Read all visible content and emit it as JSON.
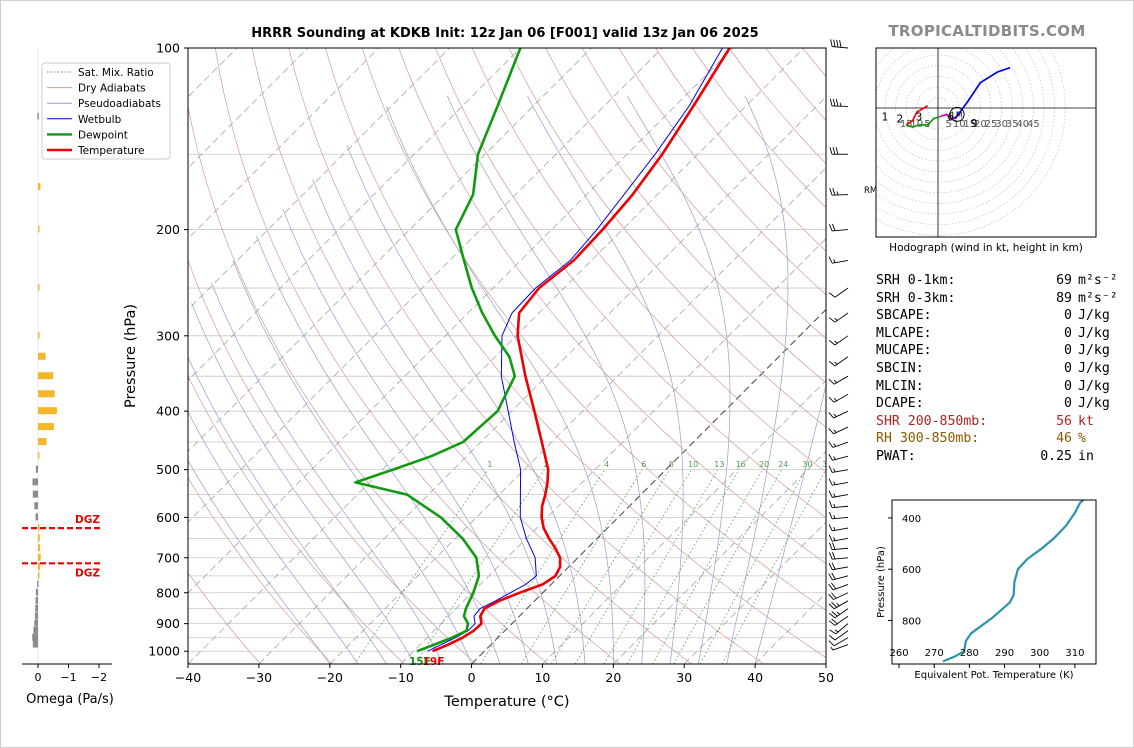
{
  "source": "TROPICALTIDBITS.COM",
  "title": "HRRR Sounding at KDKB Init: 12z Jan 06 [F001] valid 13z Jan 06 2025",
  "omega": {
    "xlabel": "Omega (Pa/s)",
    "ticks": [
      "0",
      "−1",
      "−2"
    ],
    "dgz_label": "DGZ",
    "dgz_top_hpa": 625,
    "dgz_bottom_hpa": 715,
    "bars": [
      {
        "p": 130,
        "v": 0.02
      },
      {
        "p": 170,
        "v": -0.08
      },
      {
        "p": 200,
        "v": -0.03
      },
      {
        "p": 250,
        "v": -0.04
      },
      {
        "p": 300,
        "v": -0.04
      },
      {
        "p": 325,
        "v": -0.25
      },
      {
        "p": 350,
        "v": -0.5
      },
      {
        "p": 375,
        "v": -0.55
      },
      {
        "p": 400,
        "v": -0.62
      },
      {
        "p": 425,
        "v": -0.52
      },
      {
        "p": 450,
        "v": -0.28
      },
      {
        "p": 475,
        "v": -0.04
      },
      {
        "p": 500,
        "v": 0.07
      },
      {
        "p": 525,
        "v": 0.18
      },
      {
        "p": 550,
        "v": 0.17
      },
      {
        "p": 575,
        "v": 0.12
      },
      {
        "p": 600,
        "v": 0.08
      },
      {
        "p": 625,
        "v": -0.04
      },
      {
        "p": 650,
        "v": -0.06
      },
      {
        "p": 675,
        "v": -0.07
      },
      {
        "p": 700,
        "v": -0.09
      },
      {
        "p": 725,
        "v": -0.07
      },
      {
        "p": 750,
        "v": -0.02
      },
      {
        "p": 775,
        "v": 0.03
      },
      {
        "p": 800,
        "v": 0.07
      },
      {
        "p": 825,
        "v": 0.08
      },
      {
        "p": 850,
        "v": 0.09
      },
      {
        "p": 875,
        "v": 0.1
      },
      {
        "p": 900,
        "v": 0.12
      },
      {
        "p": 925,
        "v": 0.15
      },
      {
        "p": 950,
        "v": 0.19
      },
      {
        "p": 975,
        "v": 0.17
      }
    ]
  },
  "chart_data": [
    {
      "type": "line",
      "title": "HRRR Sounding at KDKB Init: 12z Jan 06 [F001] valid 13z Jan 06 2025",
      "xlabel": "Temperature (°C)",
      "ylabel": "Pressure (hPa)",
      "xlim": [
        -40,
        50
      ],
      "ylim": [
        1050,
        100
      ],
      "y_scale": "log",
      "x_ticks": [
        "−40",
        "−30",
        "−20",
        "−10",
        "0",
        "10",
        "20",
        "30",
        "40",
        "50"
      ],
      "y_ticks": [
        {
          "p": 100,
          "label": "100"
        },
        {
          "p": 200,
          "label": "200"
        },
        {
          "p": 300,
          "label": "300"
        },
        {
          "p": 400,
          "label": "400"
        },
        {
          "p": 500,
          "label": "500"
        },
        {
          "p": 600,
          "label": "600"
        },
        {
          "p": 700,
          "label": "700"
        },
        {
          "p": 800,
          "label": "800"
        },
        {
          "p": 900,
          "label": "900"
        },
        {
          "p": 1000,
          "label": "1000"
        }
      ],
      "grid": true,
      "legend_position": "top-left",
      "legend": [
        {
          "label": "Sat. Mix. Ratio",
          "color": "#4c9f4c",
          "style": "dotted"
        },
        {
          "label": "Dry Adiabats",
          "color": "#d49a9a",
          "style": "solid"
        },
        {
          "label": "Pseudoadiabats",
          "color": "#9a9ad4",
          "style": "solid"
        },
        {
          "label": "Wetbulb",
          "color": "#0000ee",
          "style": "solid"
        },
        {
          "label": "Dewpoint",
          "color": "#109a10",
          "style": "solid"
        },
        {
          "label": "Temperature",
          "color": "#ee0000",
          "style": "solid"
        }
      ],
      "mixing_ratio_labels": [
        "1",
        "2",
        "4",
        "6",
        "8",
        "10",
        "13",
        "16",
        "20",
        "24",
        "30",
        "36"
      ],
      "mixing_ratio_values": [
        1,
        2,
        4,
        6,
        8,
        10,
        13,
        16,
        20,
        24,
        30,
        36
      ],
      "surface_labels": {
        "dewpoint": "15F",
        "temperature": "19F"
      },
      "series": [
        {
          "name": "Temperature",
          "color": "#ee0000",
          "points": [
            {
              "p": 1000,
              "t": -7.3
            },
            {
              "p": 975,
              "t": -6.0
            },
            {
              "p": 950,
              "t": -5.0
            },
            {
              "p": 925,
              "t": -4.4
            },
            {
              "p": 900,
              "t": -4.3
            },
            {
              "p": 875,
              "t": -5.5
            },
            {
              "p": 850,
              "t": -6.0
            },
            {
              "p": 825,
              "t": -5.0
            },
            {
              "p": 800,
              "t": -3.3
            },
            {
              "p": 775,
              "t": -1.2
            },
            {
              "p": 750,
              "t": -0.6
            },
            {
              "p": 725,
              "t": -1.2
            },
            {
              "p": 700,
              "t": -2.5
            },
            {
              "p": 675,
              "t": -4.5
            },
            {
              "p": 650,
              "t": -6.8
            },
            {
              "p": 625,
              "t": -9.0
            },
            {
              "p": 600,
              "t": -10.8
            },
            {
              "p": 575,
              "t": -12.3
            },
            {
              "p": 550,
              "t": -13.5
            },
            {
              "p": 525,
              "t": -14.9
            },
            {
              "p": 500,
              "t": -16.6
            },
            {
              "p": 450,
              "t": -21.4
            },
            {
              "p": 400,
              "t": -26.8
            },
            {
              "p": 350,
              "t": -33.0
            },
            {
              "p": 300,
              "t": -39.8
            },
            {
              "p": 275,
              "t": -42.8
            },
            {
              "p": 250,
              "t": -43.5
            },
            {
              "p": 225,
              "t": -42.5
            },
            {
              "p": 200,
              "t": -42.8
            },
            {
              "p": 175,
              "t": -43.5
            },
            {
              "p": 150,
              "t": -45.0
            },
            {
              "p": 125,
              "t": -47.4
            },
            {
              "p": 100,
              "t": -50.5
            }
          ]
        },
        {
          "name": "Wetbulb",
          "color": "#0000ee",
          "points": [
            {
              "p": 1000,
              "t": -8.0
            },
            {
              "p": 950,
              "t": -6.0
            },
            {
              "p": 925,
              "t": -5.2
            },
            {
              "p": 900,
              "t": -5.2
            },
            {
              "p": 875,
              "t": -6.4
            },
            {
              "p": 850,
              "t": -6.6
            },
            {
              "p": 825,
              "t": -5.5
            },
            {
              "p": 800,
              "t": -4.6
            },
            {
              "p": 775,
              "t": -3.6
            },
            {
              "p": 750,
              "t": -3.3
            },
            {
              "p": 700,
              "t": -6.0
            },
            {
              "p": 650,
              "t": -10.0
            },
            {
              "p": 600,
              "t": -13.8
            },
            {
              "p": 550,
              "t": -17.0
            },
            {
              "p": 500,
              "t": -20.5
            },
            {
              "p": 450,
              "t": -25.3
            },
            {
              "p": 400,
              "t": -30.5
            },
            {
              "p": 350,
              "t": -36.4
            },
            {
              "p": 300,
              "t": -42.0
            },
            {
              "p": 275,
              "t": -43.8
            },
            {
              "p": 250,
              "t": -44.0
            },
            {
              "p": 225,
              "t": -43.0
            },
            {
              "p": 200,
              "t": -43.6
            },
            {
              "p": 150,
              "t": -46.0
            },
            {
              "p": 125,
              "t": -48.0
            },
            {
              "p": 100,
              "t": -51.5
            }
          ]
        },
        {
          "name": "Dewpoint",
          "color": "#109a10",
          "points": [
            {
              "p": 1000,
              "t": -9.5
            },
            {
              "p": 975,
              "t": -8.0
            },
            {
              "p": 950,
              "t": -6.5
            },
            {
              "p": 925,
              "t": -5.4
            },
            {
              "p": 900,
              "t": -6.2
            },
            {
              "p": 875,
              "t": -7.8
            },
            {
              "p": 850,
              "t": -8.6
            },
            {
              "p": 800,
              "t": -9.8
            },
            {
              "p": 750,
              "t": -11.4
            },
            {
              "p": 700,
              "t": -14.3
            },
            {
              "p": 650,
              "t": -19.0
            },
            {
              "p": 600,
              "t": -25.0
            },
            {
              "p": 550,
              "t": -33.0
            },
            {
              "p": 525,
              "t": -42.0
            },
            {
              "p": 500,
              "t": -38.5
            },
            {
              "p": 475,
              "t": -35.0
            },
            {
              "p": 450,
              "t": -32.5
            },
            {
              "p": 400,
              "t": -32.0
            },
            {
              "p": 350,
              "t": -34.5
            },
            {
              "p": 325,
              "t": -38.0
            },
            {
              "p": 300,
              "t": -43.0
            },
            {
              "p": 275,
              "t": -48.0
            },
            {
              "p": 250,
              "t": -53.0
            },
            {
              "p": 225,
              "t": -58.0
            },
            {
              "p": 200,
              "t": -63.5
            },
            {
              "p": 175,
              "t": -66.0
            },
            {
              "p": 150,
              "t": -71.0
            },
            {
              "p": 125,
              "t": -75.0
            },
            {
              "p": 100,
              "t": -80.0
            }
          ]
        }
      ],
      "wind_barbs": [
        {
          "p": 975,
          "dir": 250,
          "spd": 5
        },
        {
          "p": 950,
          "dir": 240,
          "spd": 10
        },
        {
          "p": 925,
          "dir": 235,
          "spd": 10
        },
        {
          "p": 900,
          "dir": 230,
          "spd": 15
        },
        {
          "p": 875,
          "dir": 235,
          "spd": 20
        },
        {
          "p": 850,
          "dir": 235,
          "spd": 25
        },
        {
          "p": 825,
          "dir": 240,
          "spd": 25
        },
        {
          "p": 800,
          "dir": 245,
          "spd": 20
        },
        {
          "p": 775,
          "dir": 250,
          "spd": 20
        },
        {
          "p": 750,
          "dir": 255,
          "spd": 20
        },
        {
          "p": 725,
          "dir": 260,
          "spd": 20
        },
        {
          "p": 700,
          "dir": 265,
          "spd": 20
        },
        {
          "p": 675,
          "dir": 265,
          "spd": 20
        },
        {
          "p": 650,
          "dir": 260,
          "spd": 15
        },
        {
          "p": 625,
          "dir": 260,
          "spd": 15
        },
        {
          "p": 600,
          "dir": 265,
          "spd": 15
        },
        {
          "p": 575,
          "dir": 265,
          "spd": 15
        },
        {
          "p": 550,
          "dir": 260,
          "spd": 15
        },
        {
          "p": 525,
          "dir": 260,
          "spd": 15
        },
        {
          "p": 500,
          "dir": 260,
          "spd": 15
        },
        {
          "p": 475,
          "dir": 255,
          "spd": 15
        },
        {
          "p": 450,
          "dir": 250,
          "spd": 15
        },
        {
          "p": 425,
          "dir": 245,
          "spd": 15
        },
        {
          "p": 400,
          "dir": 245,
          "spd": 15
        },
        {
          "p": 375,
          "dir": 240,
          "spd": 15
        },
        {
          "p": 350,
          "dir": 240,
          "spd": 15
        },
        {
          "p": 325,
          "dir": 235,
          "spd": 15
        },
        {
          "p": 300,
          "dir": 235,
          "spd": 15
        },
        {
          "p": 275,
          "dir": 235,
          "spd": 15
        },
        {
          "p": 250,
          "dir": 235,
          "spd": 10
        },
        {
          "p": 225,
          "dir": 260,
          "spd": 15
        },
        {
          "p": 200,
          "dir": 265,
          "spd": 20
        },
        {
          "p": 175,
          "dir": 268,
          "spd": 25
        },
        {
          "p": 150,
          "dir": 270,
          "spd": 30
        },
        {
          "p": 125,
          "dir": 272,
          "spd": 35
        },
        {
          "p": 100,
          "dir": 275,
          "spd": 40
        }
      ]
    },
    {
      "type": "line",
      "title": "Hodograph (wind in kt, height in km)",
      "ring_labels": [
        "15",
        "10",
        "5",
        "5",
        "10",
        "15",
        "20",
        "25",
        "30",
        "35",
        "40",
        "45"
      ],
      "height_labels": [
        "1",
        "2",
        "3",
        "6",
        "9"
      ],
      "storm_motion_labels": [
        "LM",
        "RM"
      ],
      "segments": [
        {
          "color": "#ee0000",
          "points": [
            [
              -5,
              1
            ],
            [
              -10,
              -2
            ],
            [
              -12,
              -6
            ],
            [
              -15,
              -8
            ]
          ]
        },
        {
          "color": "#109a10",
          "points": [
            [
              -15,
              -8
            ],
            [
              -12,
              -9
            ],
            [
              -9,
              -8
            ],
            [
              -5,
              -8
            ],
            [
              -2,
              -5
            ],
            [
              1,
              -4
            ]
          ]
        },
        {
          "color": "#cc00cc",
          "points": [
            [
              1,
              -4
            ],
            [
              4,
              -3
            ],
            [
              6,
              -5
            ],
            [
              8,
              -5
            ]
          ]
        },
        {
          "color": "#0000ee",
          "points": [
            [
              8,
              -5
            ],
            [
              14,
              3
            ],
            [
              20,
              12
            ],
            [
              28,
              17
            ],
            [
              34,
              19
            ]
          ]
        }
      ]
    },
    {
      "type": "line",
      "xlabel": "Equivalent Pot. Temperature (K)",
      "ylabel": "Pressure (hPa)",
      "xlim": [
        258,
        316
      ],
      "ylim": [
        970,
        330
      ],
      "x_ticks": [
        "260",
        "270",
        "280",
        "290",
        "300",
        "310"
      ],
      "y_ticks": [
        "400",
        "600",
        "800"
      ],
      "series": [
        {
          "name": "theta-e",
          "color": "#2a94aa",
          "points": [
            {
              "p": 960,
              "t": 272.5
            },
            {
              "p": 940,
              "t": 276.0
            },
            {
              "p": 920,
              "t": 278.5
            },
            {
              "p": 880,
              "t": 279.0
            },
            {
              "p": 850,
              "t": 280.5
            },
            {
              "p": 820,
              "t": 283.5
            },
            {
              "p": 790,
              "t": 286.5
            },
            {
              "p": 760,
              "t": 289.0
            },
            {
              "p": 730,
              "t": 291.5
            },
            {
              "p": 700,
              "t": 292.6
            },
            {
              "p": 650,
              "t": 292.8
            },
            {
              "p": 600,
              "t": 293.8
            },
            {
              "p": 560,
              "t": 296.5
            },
            {
              "p": 520,
              "t": 300.5
            },
            {
              "p": 480,
              "t": 304.0
            },
            {
              "p": 430,
              "t": 307.5
            },
            {
              "p": 380,
              "t": 310.0
            },
            {
              "p": 340,
              "t": 311.5
            },
            {
              "p": 330,
              "t": 312.4
            }
          ]
        }
      ]
    }
  ],
  "params": [
    {
      "label": "SRH 0-1km:",
      "value": "69",
      "unit": "m²s⁻²",
      "color": "#000000"
    },
    {
      "label": "SRH 0-3km:",
      "value": "89",
      "unit": "m²s⁻²",
      "color": "#000000"
    },
    {
      "label": "SBCAPE:",
      "value": "0",
      "unit": "J/kg",
      "color": "#000000"
    },
    {
      "label": "MLCAPE:",
      "value": "0",
      "unit": "J/kg",
      "color": "#000000"
    },
    {
      "label": "MUCAPE:",
      "value": "0",
      "unit": "J/kg",
      "color": "#000000"
    },
    {
      "label": "SBCIN:",
      "value": "0",
      "unit": "J/kg",
      "color": "#000000"
    },
    {
      "label": "MLCIN:",
      "value": "0",
      "unit": "J/kg",
      "color": "#000000"
    },
    {
      "label": "DCAPE:",
      "value": "0",
      "unit": "J/kg",
      "color": "#000000"
    },
    {
      "label": "SHR 200-850mb:",
      "value": "56",
      "unit": "kt",
      "color": "#b22222"
    },
    {
      "label": "RH 300-850mb:",
      "value": "46",
      "unit": "%",
      "color": "#8b5a00"
    },
    {
      "label": "PWAT:",
      "value": "0.25",
      "unit": "in",
      "color": "#000000"
    }
  ]
}
